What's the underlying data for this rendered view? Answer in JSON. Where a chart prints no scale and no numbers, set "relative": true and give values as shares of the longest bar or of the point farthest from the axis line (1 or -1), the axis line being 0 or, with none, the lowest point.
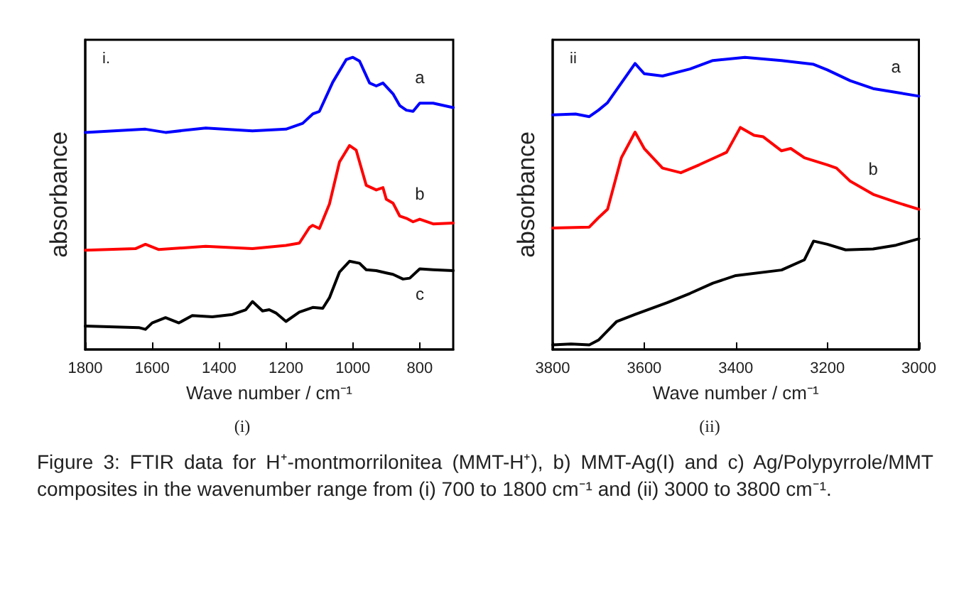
{
  "chart_data": [
    {
      "type": "line",
      "relative": true,
      "xlabel": "Wave number / cm⁻¹",
      "ylabel": "absorbance",
      "subtitle": "(i)",
      "annotations": [
        "i."
      ],
      "xlim": [
        1800,
        700
      ],
      "xticks": [
        1800,
        1600,
        1400,
        1200,
        1000,
        800
      ],
      "marker": "none",
      "line_style": "solid",
      "grid": false,
      "series": [
        {
          "name": "a",
          "color": "#0000ff",
          "x": [
            1800,
            1620,
            1560,
            1440,
            1300,
            1200,
            1150,
            1120,
            1100,
            1060,
            1020,
            1000,
            980,
            950,
            930,
            910,
            880,
            860,
            840,
            820,
            800,
            760,
            700
          ],
          "values": [
            0.743,
            0.754,
            0.743,
            0.758,
            0.748,
            0.754,
            0.774,
            0.806,
            0.815,
            0.915,
            0.992,
            1.0,
            0.987,
            0.912,
            0.902,
            0.912,
            0.875,
            0.835,
            0.819,
            0.815,
            0.843,
            0.843,
            0.828
          ]
        },
        {
          "name": "b",
          "color": "#ff0000",
          "x": [
            1800,
            1650,
            1620,
            1580,
            1440,
            1300,
            1200,
            1160,
            1130,
            1120,
            1100,
            1070,
            1040,
            1010,
            990,
            960,
            930,
            910,
            900,
            880,
            860,
            840,
            820,
            800,
            760,
            700
          ],
          "values": [
            0.34,
            0.345,
            0.36,
            0.342,
            0.353,
            0.345,
            0.356,
            0.364,
            0.417,
            0.425,
            0.414,
            0.498,
            0.642,
            0.698,
            0.682,
            0.562,
            0.546,
            0.554,
            0.514,
            0.501,
            0.457,
            0.449,
            0.437,
            0.446,
            0.43,
            0.433
          ]
        },
        {
          "name": "c",
          "color": "#000000",
          "x": [
            1800,
            1640,
            1620,
            1600,
            1560,
            1520,
            1480,
            1420,
            1360,
            1320,
            1300,
            1270,
            1250,
            1230,
            1200,
            1160,
            1120,
            1090,
            1070,
            1040,
            1010,
            980,
            960,
            930,
            900,
            880,
            850,
            830,
            800,
            760,
            700
          ],
          "values": [
            0.08,
            0.075,
            0.069,
            0.091,
            0.109,
            0.091,
            0.116,
            0.112,
            0.12,
            0.136,
            0.164,
            0.132,
            0.136,
            0.125,
            0.096,
            0.128,
            0.144,
            0.141,
            0.177,
            0.265,
            0.302,
            0.295,
            0.273,
            0.27,
            0.262,
            0.257,
            0.241,
            0.244,
            0.276,
            0.273,
            0.27
          ]
        }
      ]
    },
    {
      "type": "line",
      "relative": true,
      "xlabel": "Wave number / cm⁻¹",
      "ylabel": "absorbance",
      "subtitle": "(ii)",
      "annotations": [
        "ii"
      ],
      "xlim": [
        3800,
        3000
      ],
      "xticks": [
        3800,
        3600,
        3400,
        3200,
        3000
      ],
      "marker": "none",
      "line_style": "solid",
      "grid": false,
      "series": [
        {
          "name": "a",
          "color": "#0000ff",
          "x": [
            3800,
            3750,
            3720,
            3700,
            3680,
            3650,
            3620,
            3600,
            3560,
            3500,
            3450,
            3380,
            3300,
            3230,
            3200,
            3150,
            3100,
            3050,
            3000
          ],
          "values": [
            0.803,
            0.806,
            0.797,
            0.819,
            0.845,
            0.912,
            0.979,
            0.944,
            0.936,
            0.96,
            0.989,
            1.0,
            0.989,
            0.976,
            0.957,
            0.92,
            0.893,
            0.88,
            0.867
          ]
        },
        {
          "name": "b",
          "color": "#ff0000",
          "x": [
            3800,
            3720,
            3700,
            3680,
            3650,
            3620,
            3600,
            3560,
            3520,
            3480,
            3420,
            3390,
            3360,
            3340,
            3300,
            3280,
            3250,
            3200,
            3180,
            3150,
            3100,
            3050,
            3000
          ],
          "values": [
            0.416,
            0.419,
            0.451,
            0.48,
            0.656,
            0.744,
            0.688,
            0.621,
            0.605,
            0.632,
            0.675,
            0.76,
            0.733,
            0.728,
            0.68,
            0.688,
            0.656,
            0.632,
            0.621,
            0.576,
            0.531,
            0.504,
            0.48
          ]
        },
        {
          "color": "#000000",
          "x": [
            3800,
            3760,
            3720,
            3700,
            3680,
            3660,
            3620,
            3550,
            3500,
            3450,
            3400,
            3300,
            3250,
            3230,
            3200,
            3160,
            3100,
            3050,
            3000
          ],
          "values": [
            0.016,
            0.019,
            0.016,
            0.032,
            0.064,
            0.096,
            0.12,
            0.16,
            0.192,
            0.227,
            0.253,
            0.272,
            0.307,
            0.371,
            0.36,
            0.341,
            0.344,
            0.357,
            0.379
          ]
        }
      ]
    },
    {
      "type": "other",
      "annotations": [
        "Figure 3: FTIR data for H⁺-montmorrilonitea (MMT-H⁺), b) MMT-Ag(I) and c) Ag/Polypyrrole/MMT composites in the wavenumber  range from (i) 700 to 1800 cm⁻¹ and (ii) 3000 to 3800 cm⁻¹."
      ]
    }
  ]
}
